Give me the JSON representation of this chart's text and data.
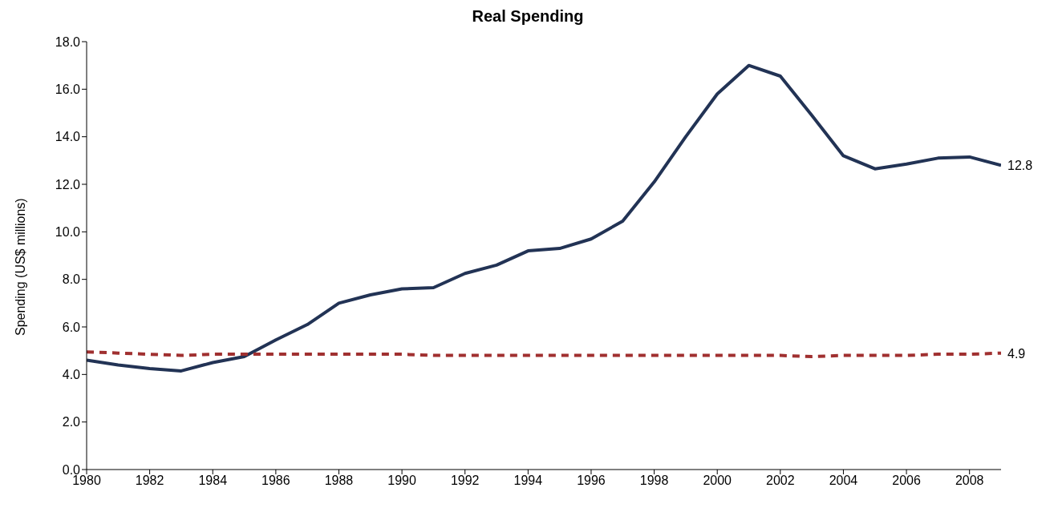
{
  "chart_data": {
    "type": "line",
    "title": "Real Spending",
    "ylabel": "Spending (US$ millions)",
    "x": [
      1980,
      1981,
      1982,
      1983,
      1984,
      1985,
      1986,
      1987,
      1988,
      1989,
      1990,
      1991,
      1992,
      1993,
      1994,
      1995,
      1996,
      1997,
      1998,
      1999,
      2000,
      2001,
      2002,
      2003,
      2004,
      2005,
      2006,
      2007,
      2008,
      2009
    ],
    "series": [
      {
        "color": "#223355",
        "line_style": "solid",
        "values": [
          4.6,
          4.4,
          4.25,
          4.15,
          4.5,
          4.75,
          5.45,
          6.1,
          7.0,
          7.35,
          7.6,
          7.65,
          8.25,
          8.6,
          9.2,
          9.3,
          9.7,
          10.45,
          12.1,
          14.0,
          15.8,
          17.0,
          16.55,
          14.9,
          13.2,
          12.65,
          12.85,
          13.1,
          13.15,
          12.8
        ],
        "value_labels": [
          null,
          null,
          null,
          null,
          null,
          null,
          null,
          null,
          null,
          null,
          null,
          null,
          null,
          null,
          null,
          null,
          null,
          null,
          null,
          null,
          null,
          null,
          null,
          null,
          null,
          null,
          null,
          null,
          null,
          "12.8"
        ]
      },
      {
        "color": "#a03030",
        "line_style": "dashed",
        "values": [
          4.95,
          4.9,
          4.85,
          4.8,
          4.85,
          4.85,
          4.85,
          4.85,
          4.85,
          4.85,
          4.85,
          4.8,
          4.8,
          4.8,
          4.8,
          4.8,
          4.8,
          4.8,
          4.8,
          4.8,
          4.8,
          4.8,
          4.8,
          4.75,
          4.8,
          4.8,
          4.8,
          4.85,
          4.85,
          4.9
        ],
        "value_labels": [
          null,
          null,
          null,
          null,
          null,
          null,
          null,
          null,
          null,
          null,
          null,
          null,
          null,
          null,
          null,
          null,
          null,
          null,
          null,
          null,
          null,
          null,
          null,
          null,
          null,
          null,
          null,
          null,
          null,
          "4.9"
        ]
      }
    ],
    "xlim": [
      1980,
      2009
    ],
    "xticks": [
      1980,
      1982,
      1984,
      1986,
      1988,
      1990,
      1992,
      1994,
      1996,
      1998,
      2000,
      2002,
      2004,
      2006,
      2008
    ],
    "ylim": [
      0,
      18
    ],
    "yticks": [
      {
        "value": 0,
        "label": "0.0"
      },
      {
        "value": 2,
        "label": "2.0"
      },
      {
        "value": 4,
        "label": "4.0"
      },
      {
        "value": 6,
        "label": "6.0"
      },
      {
        "value": 8,
        "label": "8.0"
      },
      {
        "value": 10,
        "label": "10.0"
      },
      {
        "value": 12,
        "label": "12.0"
      },
      {
        "value": 14,
        "label": "14.0"
      },
      {
        "value": 16,
        "label": "16.0"
      },
      {
        "value": 18,
        "label": "18.0"
      }
    ],
    "grid": false,
    "legend": false,
    "marker": "none"
  }
}
